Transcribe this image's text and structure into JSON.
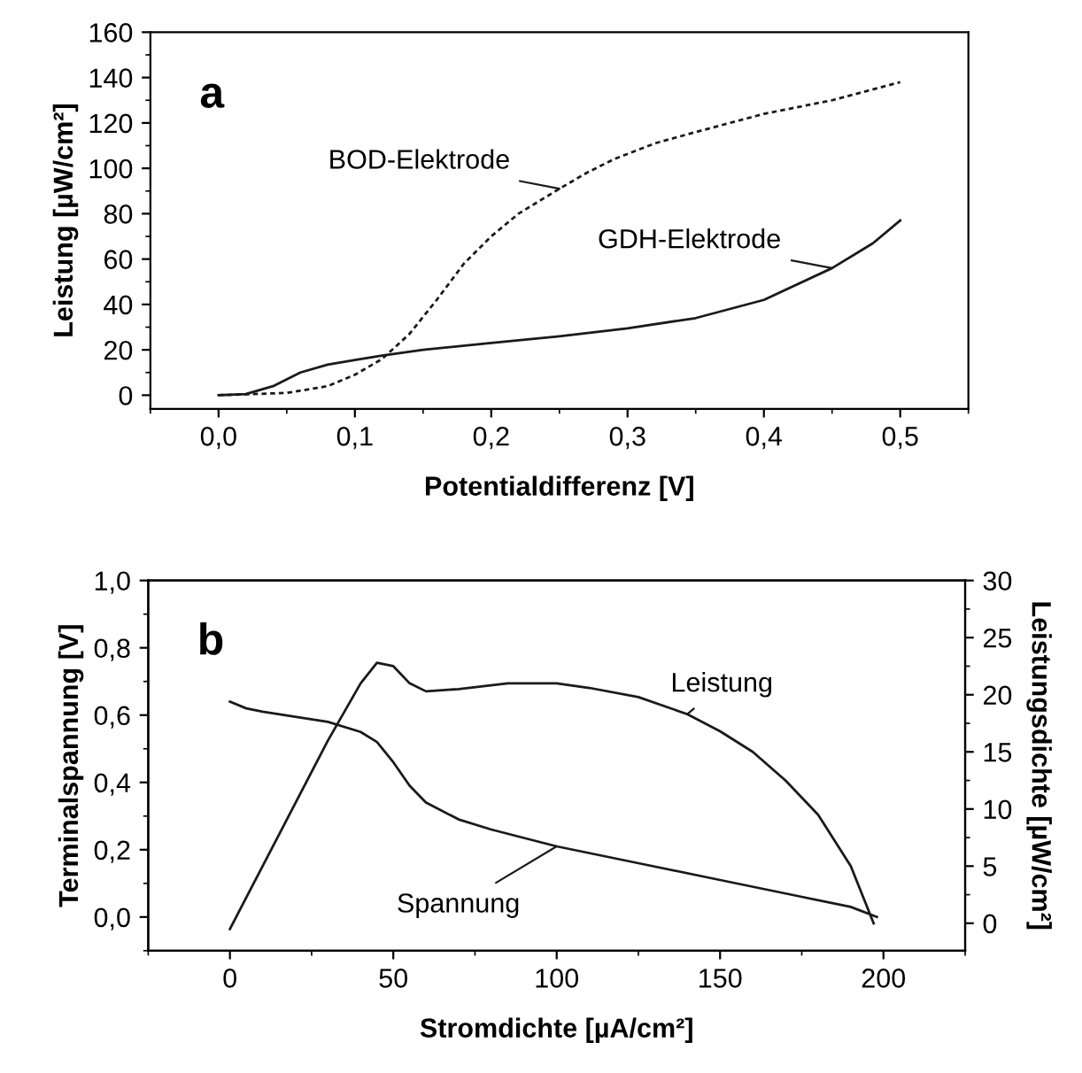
{
  "chart_data": [
    {
      "type": "line",
      "xlabel": "Potentialdifferenz [V]",
      "ylabel": "Leistung [µW/cm²]",
      "xlim": [
        -0.05,
        0.55
      ],
      "ylim": [
        -6,
        160
      ],
      "xticks": [
        {
          "value": 0.0,
          "label": "0,0"
        },
        {
          "value": 0.1,
          "label": "0,1"
        },
        {
          "value": 0.2,
          "label": "0,2"
        },
        {
          "value": 0.3,
          "label": "0,3"
        },
        {
          "value": 0.4,
          "label": "0,4"
        },
        {
          "value": 0.5,
          "label": "0,5"
        }
      ],
      "yticks": [
        0,
        20,
        40,
        60,
        80,
        100,
        120,
        140,
        160
      ],
      "grid": false,
      "series": [
        {
          "name": "GDH-Elektrode",
          "color": "#1a1a1a",
          "line_style": "solid",
          "x": [
            0,
            0.02,
            0.04,
            0.06,
            0.08,
            0.1,
            0.12,
            0.15,
            0.2,
            0.25,
            0.3,
            0.35,
            0.4,
            0.45,
            0.48,
            0.5
          ],
          "values": [
            0,
            0.5,
            4,
            10,
            13.5,
            15.5,
            17.5,
            20,
            23,
            26,
            29.5,
            34,
            42,
            56,
            67,
            77
          ]
        },
        {
          "name": "BOD-Elektrode",
          "color": "#1a1a1a",
          "line_style": "dotted",
          "x": [
            0,
            0.05,
            0.08,
            0.1,
            0.12,
            0.14,
            0.16,
            0.18,
            0.2,
            0.22,
            0.25,
            0.27,
            0.29,
            0.32,
            0.35,
            0.4,
            0.45,
            0.5
          ],
          "values": [
            0,
            1,
            4,
            9,
            16,
            27,
            42,
            58,
            70,
            80,
            91,
            98,
            104,
            111,
            116,
            124,
            130,
            138
          ]
        }
      ],
      "annotations": [
        "a"
      ]
    },
    {
      "type": "line",
      "xlabel": "Stromdichte [µA/cm²]",
      "ylabel": "Terminalspannung [V]",
      "y2label": "Leistungsdichte [µW/cm²]",
      "xlim": [
        -25,
        225
      ],
      "ylim": [
        -0.1,
        1.0
      ],
      "y2lim": [
        -2.4,
        30
      ],
      "xticks": [
        0,
        50,
        100,
        150,
        200
      ],
      "yticks": [
        {
          "value": 0.0,
          "label": "0,0"
        },
        {
          "value": 0.2,
          "label": "0,2"
        },
        {
          "value": 0.4,
          "label": "0,4"
        },
        {
          "value": 0.6,
          "label": "0,6"
        },
        {
          "value": 0.8,
          "label": "0,8"
        },
        {
          "value": 1.0,
          "label": "1,0"
        }
      ],
      "y2ticks": [
        0,
        5,
        10,
        15,
        20,
        25,
        30
      ],
      "grid": false,
      "series": [
        {
          "name": "Spannung",
          "color": "#1a1a1a",
          "line_style": "solid",
          "x": [
            0,
            5,
            10,
            20,
            30,
            40,
            45,
            50,
            55,
            60,
            70,
            80,
            100,
            125,
            150,
            175,
            190,
            198
          ],
          "values": [
            0.64,
            0.62,
            0.61,
            0.595,
            0.58,
            0.55,
            0.52,
            0.46,
            0.39,
            0.34,
            0.29,
            0.26,
            0.21,
            0.16,
            0.11,
            0.06,
            0.03,
            0.0
          ]
        },
        {
          "name": "Leistung",
          "color": "#1a1a1a",
          "line_style": "solid",
          "axis": "y2",
          "x": [
            0,
            10,
            20,
            30,
            40,
            45,
            50,
            55,
            60,
            70,
            85,
            100,
            110,
            125,
            140,
            150,
            160,
            170,
            180,
            190,
            197
          ],
          "values": [
            -0.5,
            5,
            10.5,
            16,
            21,
            22.8,
            22.5,
            21,
            20.3,
            20.5,
            21,
            21,
            20.6,
            19.8,
            18.3,
            16.8,
            15,
            12.5,
            9.5,
            5,
            0
          ]
        }
      ],
      "annotations": [
        "b"
      ]
    }
  ]
}
